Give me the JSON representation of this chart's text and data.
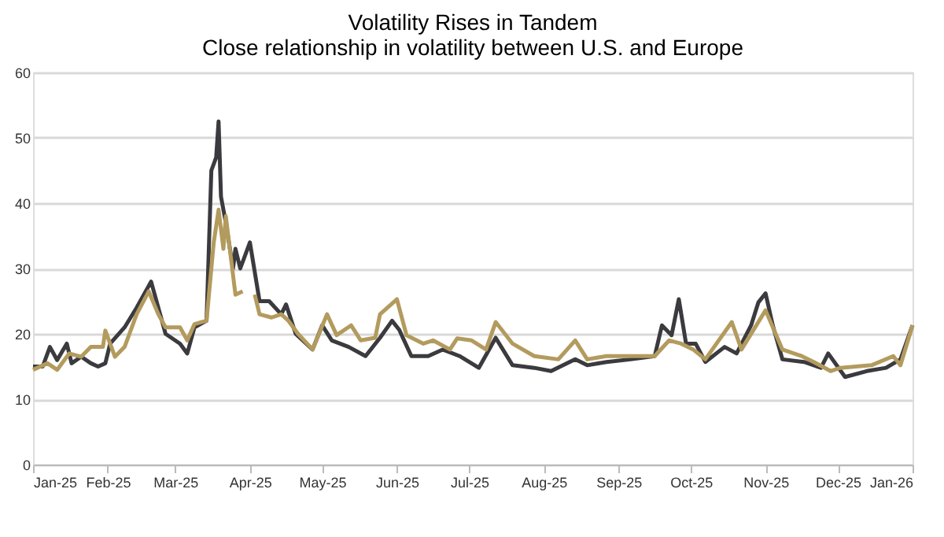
{
  "chart_data": {
    "type": "line",
    "title": "Volatility Rises in Tandem",
    "subtitle": "Close relationship in volatility between U.S. and Europe",
    "xlim": [
      "2025-01-01",
      "2026-01-01"
    ],
    "xticks": [
      {
        "value": "2025-01-01",
        "label": "Jan-25"
      },
      {
        "value": "2025-02-01",
        "label": "Feb-25"
      },
      {
        "value": "2025-03-01",
        "label": "Mar-25"
      },
      {
        "value": "2025-04-01",
        "label": "Apr-25"
      },
      {
        "value": "2025-05-01",
        "label": "May-25"
      },
      {
        "value": "2025-06-01",
        "label": "Jun-25"
      },
      {
        "value": "2025-07-01",
        "label": "Jul-25"
      },
      {
        "value": "2025-08-01",
        "label": "Aug-25"
      },
      {
        "value": "2025-09-01",
        "label": "Sep-25"
      },
      {
        "value": "2025-10-01",
        "label": "Oct-25"
      },
      {
        "value": "2025-11-01",
        "label": "Nov-25"
      },
      {
        "value": "2025-12-01",
        "label": "Dec-25"
      },
      {
        "value": "2026-01-01",
        "label": "Jan-26"
      }
    ],
    "ylim": [
      0,
      60
    ],
    "yticks": [
      0,
      10,
      20,
      30,
      40,
      50,
      60
    ],
    "grid": "y",
    "marker": "none",
    "line_style": "solid",
    "series": [
      {
        "color": "#3a3a3f",
        "x": [
          "2025-01-01",
          "2025-01-05",
          "2025-01-08",
          "2025-01-11",
          "2025-01-15",
          "2025-01-17",
          "2025-01-21",
          "2025-01-25",
          "2025-01-28",
          "2025-01-31",
          "2025-02-02",
          "2025-02-08",
          "2025-02-13",
          "2025-02-19",
          "2025-02-22",
          "2025-02-25",
          "2025-03-03",
          "2025-03-06",
          "2025-03-09",
          "2025-03-14",
          "2025-03-16",
          "2025-03-18",
          "2025-03-19",
          "2025-03-20",
          "2025-03-22",
          "2025-03-25",
          "2025-03-26",
          "2025-03-28",
          "2025-04-01",
          "2025-04-05",
          "2025-04-09",
          "2025-04-14",
          "2025-04-16",
          "2025-04-20",
          "2025-04-27",
          "2025-05-01",
          "2025-05-05",
          "2025-05-12",
          "2025-05-19",
          "2025-05-25",
          "2025-05-30",
          "2025-06-02",
          "2025-06-07",
          "2025-06-14",
          "2025-06-20",
          "2025-06-27",
          "2025-07-05",
          "2025-07-12",
          "2025-07-19",
          "2025-07-28",
          "2025-08-04",
          "2025-08-14",
          "2025-08-19",
          "2025-08-27",
          "2025-09-06",
          "2025-09-16",
          "2025-09-19",
          "2025-09-23",
          "2025-09-26",
          "2025-09-29",
          "2025-10-03",
          "2025-10-07",
          "2025-10-15",
          "2025-10-20",
          "2025-10-26",
          "2025-10-29",
          "2025-11-01",
          "2025-11-04",
          "2025-11-08",
          "2025-11-17",
          "2025-11-24",
          "2025-11-27",
          "2025-12-04",
          "2025-12-13",
          "2025-12-21",
          "2025-12-27",
          "2026-01-01"
        ],
        "values": [
          15,
          15,
          18,
          16,
          18.5,
          15.5,
          16.5,
          15.5,
          15,
          15.5,
          18.5,
          21,
          24,
          28,
          24,
          20,
          18.5,
          17,
          21,
          22,
          45,
          47,
          52.5,
          41,
          37,
          30,
          33,
          30,
          34,
          25,
          25,
          23,
          24.5,
          20,
          17.6,
          21.3,
          19,
          18,
          16.6,
          19.4,
          22,
          20.6,
          16.6,
          16.6,
          17.6,
          16.6,
          14.8,
          19.4,
          15.2,
          14.8,
          14.3,
          16.1,
          15.2,
          15.7,
          16.1,
          16.6,
          21.3,
          19.8,
          25.3,
          18.5,
          18.5,
          15.7,
          18,
          17,
          21.3,
          24.8,
          26.2,
          21.3,
          16.1,
          15.7,
          14.8,
          17,
          13.4,
          14.3,
          14.8,
          16.1,
          21.3
        ]
      },
      {
        "color": "#b39b5e",
        "x": [
          "2025-01-01",
          "2025-01-07",
          "2025-01-11",
          "2025-01-16",
          "2025-01-21",
          "2025-01-25",
          "2025-01-30",
          "2025-01-31",
          "2025-02-04",
          "2025-02-08",
          "2025-02-13",
          "2025-02-18",
          "2025-02-22",
          "2025-02-25",
          "2025-03-03",
          "2025-03-06",
          "2025-03-09",
          "2025-03-14",
          "2025-03-17",
          "2025-03-19",
          "2025-03-21",
          "2025-03-22",
          "2025-03-26",
          "2025-03-29",
          "2025-03-31",
          "2025-04-03",
          "2025-04-05",
          "2025-04-10",
          "2025-04-14",
          "2025-04-17",
          "2025-04-21",
          "2025-04-27",
          "2025-05-03",
          "2025-05-07",
          "2025-05-13",
          "2025-05-17",
          "2025-05-23",
          "2025-05-25",
          "2025-06-01",
          "2025-06-05",
          "2025-06-12",
          "2025-06-16",
          "2025-06-23",
          "2025-06-26",
          "2025-07-02",
          "2025-07-08",
          "2025-07-12",
          "2025-07-19",
          "2025-07-28",
          "2025-08-07",
          "2025-08-14",
          "2025-08-19",
          "2025-08-27",
          "2025-09-06",
          "2025-09-16",
          "2025-09-22",
          "2025-09-27",
          "2025-10-02",
          "2025-10-07",
          "2025-10-18",
          "2025-10-22",
          "2025-11-01",
          "2025-11-08",
          "2025-11-16",
          "2025-11-21",
          "2025-11-28",
          "2025-12-02",
          "2025-12-15",
          "2025-12-24",
          "2025-12-27",
          "2026-01-01"
        ],
        "values": [
          14.5,
          15.5,
          14.5,
          17,
          16.5,
          18,
          18,
          20.5,
          16.5,
          18,
          23,
          26.5,
          23,
          21,
          21,
          19,
          21.5,
          22,
          34,
          39,
          33,
          38,
          26,
          26.5,
          null,
          26,
          23,
          22.5,
          23,
          22,
          20,
          17.6,
          23,
          19.8,
          21.3,
          19,
          19.4,
          23,
          25.3,
          19.8,
          18.5,
          19,
          17.6,
          19.3,
          19,
          17.6,
          21.8,
          18.5,
          16.6,
          16.1,
          19,
          16.1,
          16.6,
          16.6,
          16.6,
          19,
          18.5,
          17.6,
          16.1,
          21.8,
          17.6,
          23.6,
          17.6,
          16.6,
          15.7,
          14.3,
          14.8,
          15.2,
          16.6,
          15.2,
          21.3
        ]
      }
    ]
  }
}
